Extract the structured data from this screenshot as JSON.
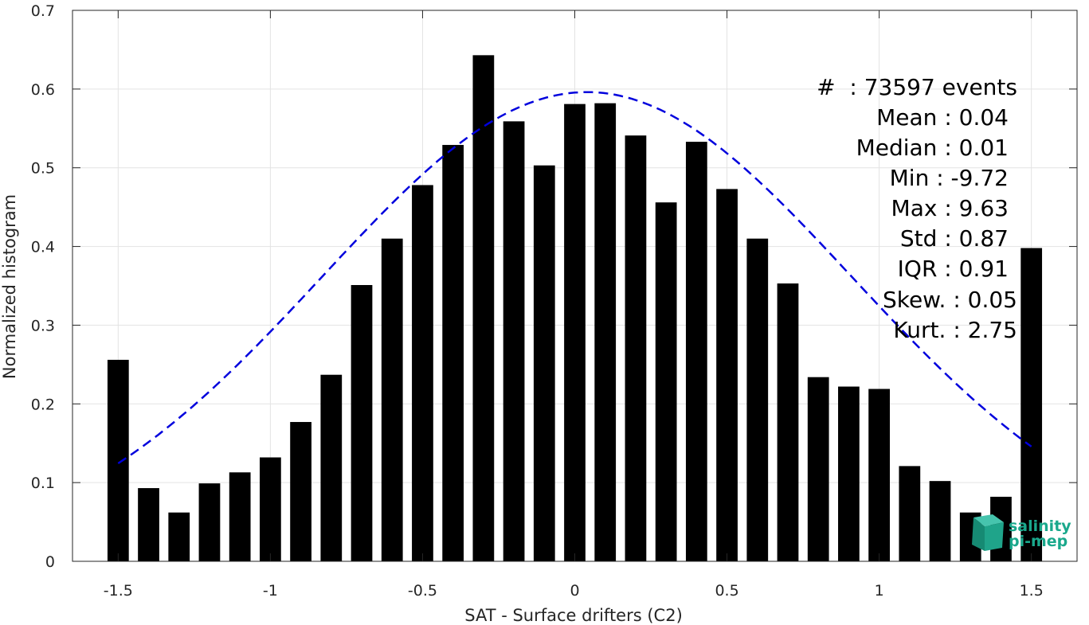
{
  "chart_data": {
    "type": "bar",
    "x": [
      -1.5,
      -1.4,
      -1.3,
      -1.2,
      -1.1,
      -1.0,
      -0.9,
      -0.8,
      -0.7,
      -0.6,
      -0.5,
      -0.4,
      -0.3,
      -0.2,
      -0.1,
      0.0,
      0.1,
      0.2,
      0.3,
      0.4,
      0.5,
      0.6,
      0.7,
      0.8,
      0.9,
      1.0,
      1.1,
      1.2,
      1.3,
      1.4,
      1.5
    ],
    "values": [
      0.256,
      0.093,
      0.062,
      0.099,
      0.113,
      0.132,
      0.177,
      0.237,
      0.351,
      0.41,
      0.478,
      0.529,
      0.643,
      0.559,
      0.503,
      0.581,
      0.582,
      0.541,
      0.456,
      0.533,
      0.473,
      0.41,
      0.353,
      0.234,
      0.222,
      0.219,
      0.121,
      0.102,
      0.062,
      0.082,
      0.398
    ],
    "fit_curve": {
      "style": "dashed",
      "color": "#0000dd",
      "mean": 0.04,
      "std": 0.87,
      "x_range": [
        -1.5,
        1.5
      ]
    },
    "xlabel": "SAT - Surface drifters (C2)",
    "ylabel": "Normalized histogram",
    "xlim": [
      -1.65,
      1.65
    ],
    "ylim": [
      0,
      0.7
    ],
    "xticks": [
      -1.5,
      -1,
      -0.5,
      0,
      0.5,
      1,
      1.5
    ],
    "xtick_labels": [
      "-1.5",
      "-1",
      "-0.5",
      "0",
      "0.5",
      "1",
      "1.5"
    ],
    "yticks": [
      0,
      0.1,
      0.2,
      0.3,
      0.4,
      0.5,
      0.6,
      0.7
    ],
    "ytick_labels": [
      "0",
      "0.1",
      "0.2",
      "0.3",
      "0.4",
      "0.5",
      "0.6",
      "0.7"
    ],
    "grid": true,
    "bar_color": "#000000"
  },
  "stats": {
    "events": "#  : 73597 events",
    "mean": "Mean : 0.04",
    "median": "Median : 0.01",
    "min": "Min : -9.72",
    "max": "Max : 9.63",
    "std": "Std : 0.87",
    "iqr": "IQR : 0.91",
    "skew": "Skew. : 0.05",
    "kurt": "Kurt. : 2.75"
  },
  "logo": {
    "line1": "salinity",
    "line2": "pi-mep",
    "color": "#1aa88c"
  }
}
